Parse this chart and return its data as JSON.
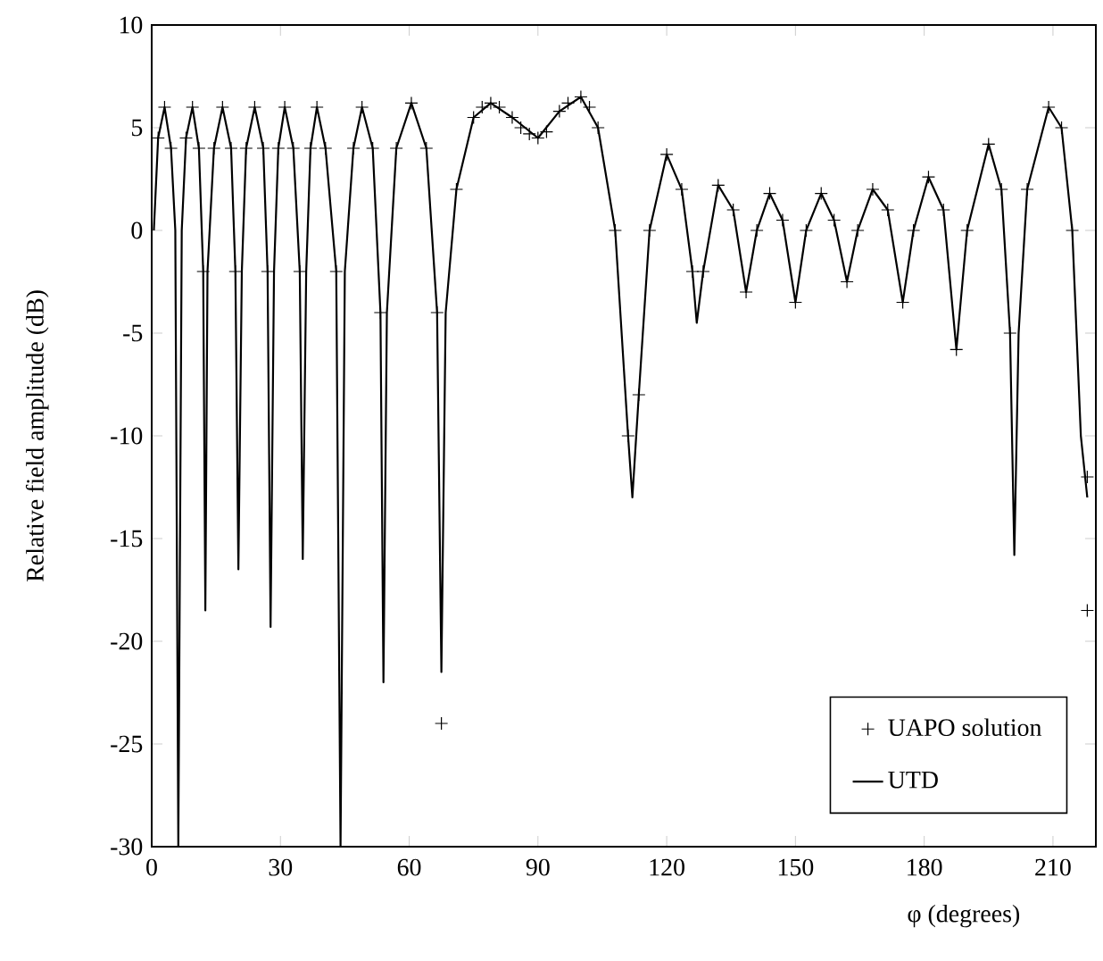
{
  "chart_data": {
    "type": "line",
    "xlabel": "φ (degrees)",
    "ylabel": "Relative field amplitude (dB)",
    "xlim": [
      0,
      220
    ],
    "ylim": [
      -30,
      10
    ],
    "xticks": [
      0,
      30,
      60,
      90,
      120,
      150,
      180,
      210
    ],
    "yticks": [
      -30,
      -25,
      -20,
      -15,
      -10,
      -5,
      0,
      5,
      10
    ],
    "grid": false,
    "legend": "bottom right",
    "series": [
      {
        "name": "UAPO solution",
        "type": "scatter",
        "marker": "cross",
        "color": "#000000",
        "x": [
          1.5,
          3,
          4.5,
          8,
          9.5,
          11,
          12,
          14.5,
          16.5,
          18.5,
          19.5,
          22,
          24,
          26,
          27,
          29.5,
          31,
          33,
          34.5,
          37,
          38.5,
          40.5,
          43,
          47,
          49,
          51.5,
          53.3,
          57,
          60.5,
          64,
          66.5,
          67.5,
          71,
          75,
          77,
          79,
          81,
          84,
          86,
          88,
          90,
          92,
          95,
          97,
          100,
          102,
          104,
          108,
          111,
          113.5,
          116,
          120,
          123.5,
          126,
          128.5,
          132,
          135.5,
          138.5,
          141,
          144,
          147,
          150,
          152.5,
          156,
          159,
          162,
          164.5,
          168,
          171.5,
          175,
          177.5,
          181,
          184.5,
          187.5,
          190,
          195,
          198,
          200,
          204,
          209,
          212,
          214.5,
          218,
          218
        ],
        "values": [
          4.5,
          6,
          4,
          4.5,
          6,
          4,
          -2,
          4,
          6,
          4,
          -2,
          4,
          6,
          4,
          -2,
          4,
          6,
          4,
          -2,
          4,
          6,
          4,
          -2,
          4,
          6,
          4,
          -4,
          4,
          6.2,
          4,
          -4,
          -24,
          2,
          5.5,
          6,
          6.2,
          6,
          5.5,
          5,
          4.7,
          4.5,
          4.8,
          5.8,
          6.2,
          6.5,
          6,
          5,
          0,
          -10,
          -8,
          0,
          3.7,
          2,
          -2,
          -2,
          2.2,
          1,
          -3,
          0,
          1.8,
          0.5,
          -3.5,
          0,
          1.8,
          0.5,
          -2.5,
          0,
          2,
          1,
          -3.5,
          0,
          2.6,
          1,
          -5.8,
          0,
          4.2,
          2,
          -5,
          2,
          6,
          5,
          0,
          -12,
          -18.5
        ]
      },
      {
        "name": "UTD",
        "marker": "none",
        "line_style": "solid",
        "color": "#000000",
        "x": [
          0.5,
          1.5,
          3,
          4.5,
          5.5,
          6.2,
          7,
          8,
          9.5,
          11,
          12,
          12.5,
          13,
          14.5,
          16.5,
          18.5,
          19.5,
          20.2,
          21,
          22,
          24,
          26,
          27,
          27.7,
          28.5,
          29.5,
          31,
          33,
          34.5,
          35.2,
          36,
          37,
          38.5,
          40.5,
          43,
          44,
          45,
          47,
          49,
          51.5,
          53.3,
          54,
          54.8,
          57,
          60.5,
          64,
          66.5,
          67.5,
          68.5,
          71,
          75,
          79,
          84,
          90,
          95,
          100,
          104,
          108,
          111,
          112,
          113.5,
          116,
          120,
          123.5,
          126,
          127,
          128.5,
          132,
          135.5,
          138.5,
          141,
          144,
          147,
          150,
          152.5,
          156,
          159,
          162,
          164.5,
          168,
          171.5,
          175,
          177.5,
          181,
          184.5,
          187.5,
          190,
          195,
          198,
          200,
          201,
          202,
          204,
          209,
          212,
          214.5,
          216.5,
          218
        ],
        "values": [
          0,
          4.5,
          6,
          4,
          0,
          -30,
          0,
          4.5,
          6,
          4,
          -2,
          -18.5,
          -2,
          4,
          6,
          4,
          -2,
          -16.5,
          -2,
          4,
          6,
          4,
          -2,
          -19.3,
          -2,
          4,
          6,
          4,
          -2,
          -16,
          -2,
          4,
          6,
          4,
          -2,
          -30,
          -2,
          4,
          6,
          4,
          -4,
          -22,
          -4,
          4,
          6.2,
          4,
          -4,
          -21.5,
          -4,
          2,
          5.5,
          6.2,
          5.5,
          4.5,
          5.8,
          6.5,
          5,
          0,
          -10,
          -13,
          -8,
          0,
          3.7,
          2,
          -2,
          -4.5,
          -2,
          2.2,
          1,
          -3,
          0,
          1.8,
          0.5,
          -3.5,
          0,
          1.8,
          0.5,
          -2.5,
          0,
          2,
          1,
          -3.5,
          0,
          2.6,
          1,
          -5.8,
          0,
          4.2,
          2,
          -5,
          -15.8,
          -5,
          2,
          6,
          5,
          0,
          -10,
          -13
        ]
      }
    ]
  }
}
